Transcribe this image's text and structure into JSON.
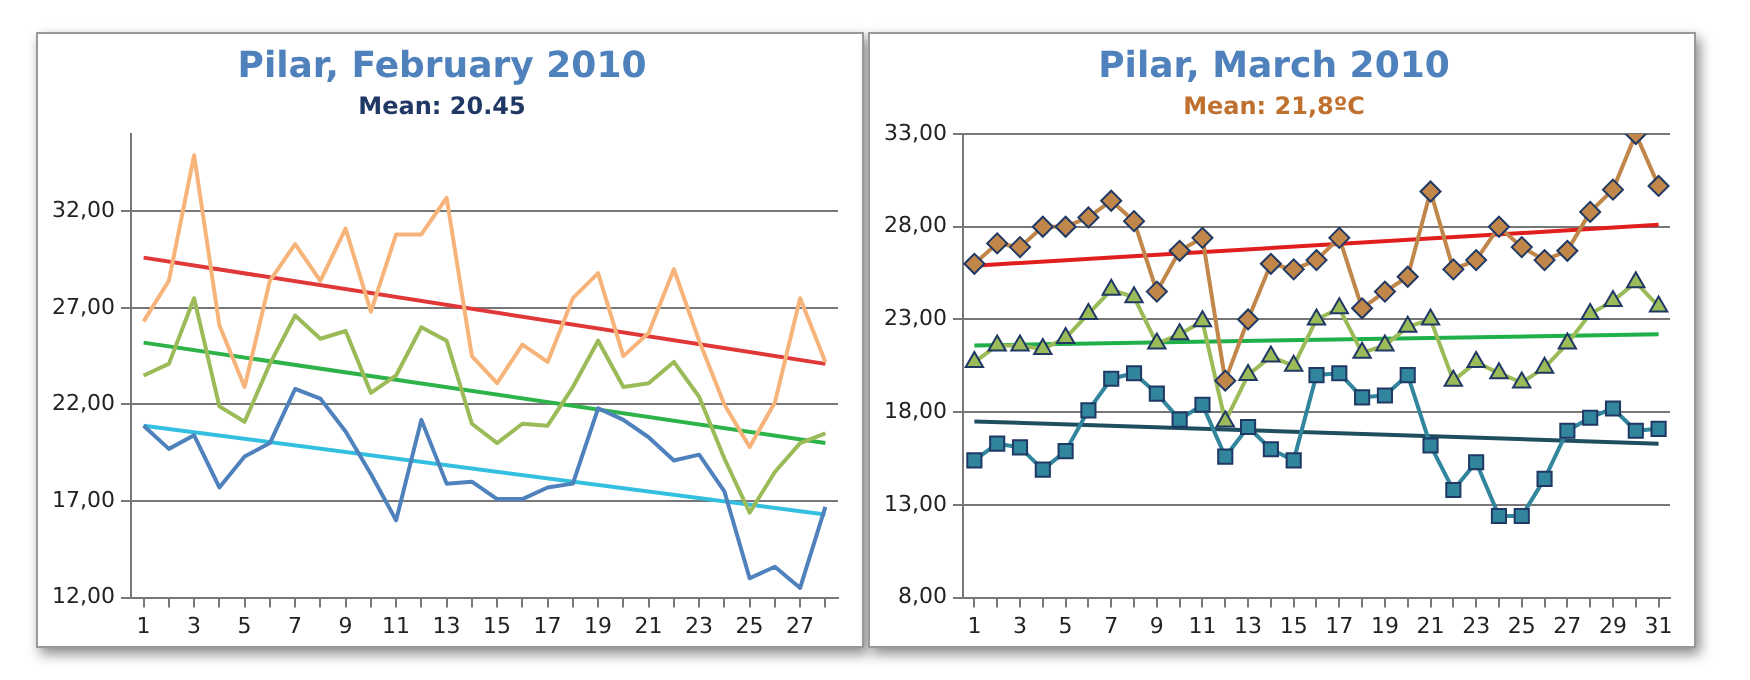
{
  "chart_data": [
    {
      "type": "line",
      "title": "Pilar, February 2010",
      "subtitle": "Mean: 20.45",
      "x": [
        1,
        2,
        3,
        4,
        5,
        6,
        7,
        8,
        9,
        10,
        11,
        12,
        13,
        14,
        15,
        16,
        17,
        18,
        19,
        20,
        21,
        22,
        23,
        24,
        25,
        26,
        27,
        28
      ],
      "series": [
        {
          "color": "#f7b47a",
          "values": [
            26.3,
            28.4,
            34.9,
            26.1,
            22.9,
            28.4,
            30.3,
            28.4,
            31.1,
            26.8,
            30.8,
            30.8,
            32.7,
            24.5,
            23.1,
            25.1,
            24.2,
            27.5,
            28.8,
            24.5,
            25.7,
            29.0,
            25.3,
            22.0,
            19.8,
            22.1,
            27.5,
            24.2
          ]
        },
        {
          "color": "#9bbb59",
          "values": [
            23.5,
            24.1,
            27.5,
            21.9,
            21.1,
            24.1,
            26.6,
            25.4,
            25.8,
            22.6,
            23.5,
            26.0,
            25.3,
            21.0,
            20.0,
            21.0,
            20.9,
            22.9,
            25.3,
            22.9,
            23.1,
            24.2,
            22.4,
            19.2,
            16.4,
            18.5,
            20.0,
            20.5
          ]
        },
        {
          "color": "#4f81bd",
          "values": [
            20.9,
            19.7,
            20.4,
            17.7,
            19.3,
            20.0,
            22.8,
            22.3,
            20.6,
            18.4,
            16.0,
            21.2,
            17.9,
            18.0,
            17.1,
            17.1,
            17.7,
            17.9,
            21.8,
            21.2,
            20.3,
            19.1,
            19.4,
            17.5,
            13.0,
            13.6,
            12.5,
            16.7
          ]
        },
        {
          "color": "#e03838",
          "x": [
            1,
            28
          ],
          "values": [
            29.6,
            24.1
          ]
        },
        {
          "color": "#2db34a",
          "x": [
            1,
            28
          ],
          "values": [
            25.2,
            20.0
          ]
        },
        {
          "color": "#33bfe0",
          "x": [
            1,
            28
          ],
          "values": [
            20.9,
            16.3
          ]
        }
      ],
      "xlim": [
        0.5,
        28.5
      ],
      "xticks": [
        1,
        {
          "value": 2,
          "label": null
        },
        3,
        {
          "value": 4,
          "label": null
        },
        5,
        {
          "value": 6,
          "label": null
        },
        7,
        {
          "value": 8,
          "label": null
        },
        9,
        {
          "value": 10,
          "label": null
        },
        11,
        {
          "value": 12,
          "label": null
        },
        13,
        {
          "value": 14,
          "label": null
        },
        15,
        {
          "value": 16,
          "label": null
        },
        17,
        {
          "value": 18,
          "label": null
        },
        19,
        {
          "value": 20,
          "label": null
        },
        21,
        {
          "value": 22,
          "label": null
        },
        23,
        {
          "value": 24,
          "label": null
        },
        25,
        {
          "value": 26,
          "label": null
        },
        27,
        {
          "value": 28,
          "label": null
        }
      ],
      "ylim": [
        12,
        36
      ],
      "yticks": [
        {
          "value": 12,
          "label": "12,00"
        },
        {
          "value": 17,
          "label": "17,00"
        },
        {
          "value": 22,
          "label": "22,00"
        },
        {
          "value": 27,
          "label": "27,00"
        },
        {
          "value": 32,
          "label": "32,00"
        }
      ],
      "grid": "y",
      "legend": false,
      "marker": "none",
      "line_style": "solid"
    },
    {
      "type": "line",
      "title": "Pilar, March 2010",
      "subtitle": "Mean: 21,8ºC",
      "x": [
        1,
        2,
        3,
        4,
        5,
        6,
        7,
        8,
        9,
        10,
        11,
        12,
        13,
        14,
        15,
        16,
        17,
        18,
        19,
        20,
        21,
        22,
        23,
        24,
        25,
        26,
        27,
        28,
        29,
        30,
        31
      ],
      "series": [
        {
          "color": "#c0864a",
          "marker": "diamond",
          "values": [
            26.0,
            27.1,
            26.9,
            28.0,
            28.0,
            28.5,
            29.4,
            28.3,
            24.5,
            26.7,
            27.4,
            19.7,
            23.0,
            26.0,
            25.7,
            26.2,
            27.4,
            23.6,
            24.5,
            25.3,
            29.9,
            25.7,
            26.2,
            28.0,
            26.9,
            26.2,
            26.7,
            28.8,
            30.0,
            33.0,
            30.2
          ]
        },
        {
          "color": "#9bbb59",
          "marker": "triangle",
          "values": [
            20.7,
            21.6,
            21.6,
            21.4,
            22.0,
            23.3,
            24.6,
            24.2,
            21.7,
            22.2,
            22.9,
            17.5,
            20.0,
            21.0,
            20.5,
            23.0,
            23.6,
            21.2,
            21.6,
            22.6,
            23.0,
            19.7,
            20.7,
            20.1,
            19.6,
            20.4,
            21.7,
            23.3,
            24.0,
            25.0,
            23.7
          ]
        },
        {
          "color": "#31859c",
          "marker": "square",
          "values": [
            15.4,
            16.3,
            16.1,
            14.9,
            15.9,
            18.1,
            19.8,
            20.1,
            19.0,
            17.6,
            18.4,
            15.6,
            17.2,
            16.0,
            15.4,
            20.0,
            20.1,
            18.8,
            18.9,
            20.0,
            16.2,
            13.8,
            15.3,
            12.4,
            12.4,
            14.4,
            17.0,
            17.7,
            18.2,
            17.0,
            17.1
          ]
        },
        {
          "color": "#e01e1e",
          "marker": "none",
          "x": [
            1,
            31
          ],
          "values": [
            25.9,
            28.1
          ]
        },
        {
          "color": "#1fb04a",
          "marker": "none",
          "x": [
            1,
            31
          ],
          "values": [
            21.6,
            22.2
          ]
        },
        {
          "color": "#1f4e5f",
          "marker": "none",
          "x": [
            1,
            31
          ],
          "values": [
            17.5,
            16.3
          ]
        }
      ],
      "xlim": [
        0.5,
        31.5
      ],
      "xticks": [
        1,
        {
          "value": 2,
          "label": null
        },
        3,
        {
          "value": 4,
          "label": null
        },
        5,
        {
          "value": 6,
          "label": null
        },
        7,
        {
          "value": 8,
          "label": null
        },
        9,
        {
          "value": 10,
          "label": null
        },
        11,
        {
          "value": 12,
          "label": null
        },
        13,
        {
          "value": 14,
          "label": null
        },
        15,
        {
          "value": 16,
          "label": null
        },
        17,
        {
          "value": 18,
          "label": null
        },
        19,
        {
          "value": 20,
          "label": null
        },
        21,
        {
          "value": 22,
          "label": null
        },
        23,
        {
          "value": 24,
          "label": null
        },
        25,
        {
          "value": 26,
          "label": null
        },
        27,
        {
          "value": 28,
          "label": null
        },
        29,
        {
          "value": 30,
          "label": null
        },
        31
      ],
      "ylim": [
        8,
        33
      ],
      "yticks": [
        {
          "value": 8,
          "label": "8,00"
        },
        {
          "value": 13,
          "label": "13,00"
        },
        {
          "value": 18,
          "label": "18,00"
        },
        {
          "value": 23,
          "label": "23,00"
        },
        {
          "value": 28,
          "label": "28,00"
        },
        {
          "value": 33,
          "label": "33,00"
        }
      ],
      "grid": "y",
      "legend": false,
      "line_style": "solid"
    }
  ]
}
